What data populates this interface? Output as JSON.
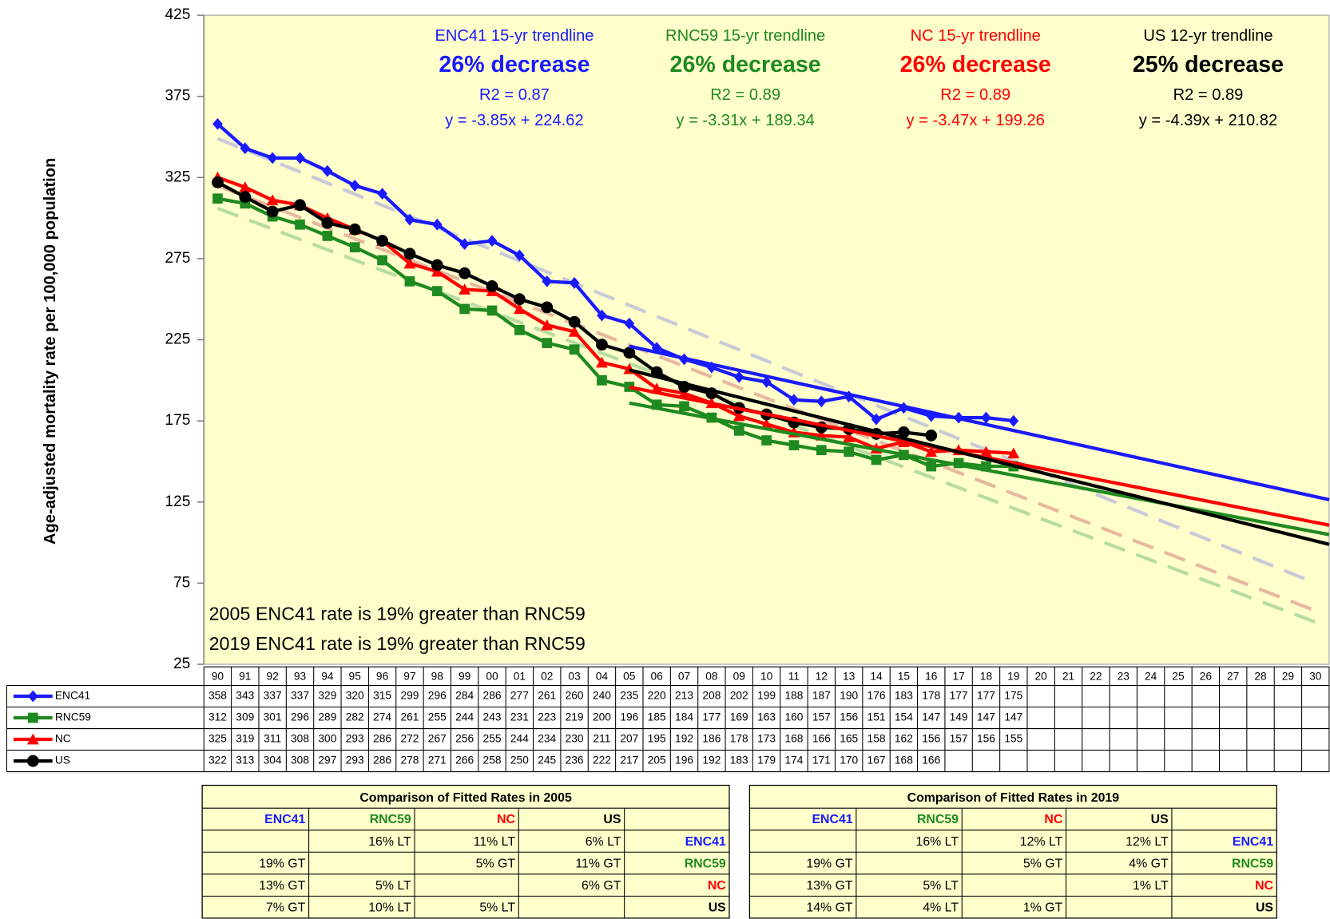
{
  "chart_data": {
    "type": "line",
    "y_label": "Age-adjusted mortality rate per 100,000 population",
    "categories": [
      "90",
      "91",
      "92",
      "93",
      "94",
      "95",
      "96",
      "97",
      "98",
      "99",
      "00",
      "01",
      "02",
      "03",
      "04",
      "05",
      "06",
      "07",
      "08",
      "09",
      "10",
      "11",
      "12",
      "13",
      "14",
      "15",
      "16",
      "17",
      "18",
      "19",
      "20",
      "21",
      "22",
      "23",
      "24",
      "25",
      "26",
      "27",
      "28",
      "29",
      "30"
    ],
    "ylim": [
      25,
      425
    ],
    "yticks": [
      25,
      75,
      125,
      175,
      225,
      275,
      325,
      375,
      425
    ],
    "background": "#ffffcc",
    "series": [
      {
        "name": "ENC41",
        "color": "#1a1aff",
        "marker": "diamond",
        "values": [
          358,
          343,
          337,
          337,
          329,
          320,
          315,
          299,
          296,
          284,
          286,
          277,
          261,
          260,
          240,
          235,
          220,
          213,
          208,
          202,
          199,
          188,
          187,
          190,
          176,
          183,
          178,
          177,
          177,
          175,
          null,
          null,
          null,
          null,
          null,
          null,
          null,
          null,
          null,
          null,
          null
        ]
      },
      {
        "name": "RNC59",
        "color": "#1f8a1f",
        "marker": "square",
        "values": [
          312,
          309,
          301,
          296,
          289,
          282,
          274,
          261,
          255,
          244,
          243,
          231,
          223,
          219,
          200,
          196,
          185,
          184,
          177,
          169,
          163,
          160,
          157,
          156,
          151,
          154,
          147,
          149,
          147,
          147,
          null,
          null,
          null,
          null,
          null,
          null,
          null,
          null,
          null,
          null,
          null
        ]
      },
      {
        "name": "NC",
        "color": "#ff0000",
        "marker": "triangle",
        "values": [
          325,
          319,
          311,
          308,
          300,
          293,
          286,
          272,
          267,
          256,
          255,
          244,
          234,
          230,
          211,
          207,
          195,
          192,
          186,
          178,
          173,
          168,
          166,
          165,
          158,
          162,
          156,
          157,
          156,
          155,
          null,
          null,
          null,
          null,
          null,
          null,
          null,
          null,
          null,
          null,
          null
        ]
      },
      {
        "name": "US",
        "color": "#000000",
        "marker": "circle",
        "values": [
          322,
          313,
          304,
          308,
          297,
          293,
          286,
          278,
          271,
          266,
          258,
          250,
          245,
          236,
          222,
          217,
          205,
          196,
          192,
          183,
          179,
          174,
          171,
          170,
          167,
          168,
          166,
          null,
          null,
          null,
          null,
          null,
          null,
          null,
          null,
          null,
          null,
          null,
          null,
          null,
          null
        ]
      }
    ],
    "long_trends": [
      {
        "color": "#c8cad8",
        "from": 0,
        "to": 40,
        "start": 349,
        "end": 75
      },
      {
        "color": "#e8b8a0",
        "from": 0,
        "to": 40,
        "start": 320,
        "end": 58
      },
      {
        "color": "#b8dca0",
        "from": 0,
        "to": 40,
        "start": 306,
        "end": 51
      }
    ],
    "trendlines": [
      {
        "color": "#1a1aff",
        "from": 15,
        "to": 40,
        "start": 221,
        "end": 124.5
      },
      {
        "color": "#1f8a1f",
        "from": 15,
        "to": 40,
        "start": 186,
        "end": 103.3
      },
      {
        "color": "#ff0000",
        "from": 15,
        "to": 40,
        "start": 195.8,
        "end": 109
      },
      {
        "color": "#000000",
        "from": 15,
        "to": 40,
        "start": 206.4,
        "end": 96.7
      }
    ],
    "annotations": [
      {
        "color": "#1a1aff",
        "lines": [
          "ENC41 15-yr trendline",
          "26% decrease",
          "R2 = 0.87",
          "y = -3.85x + 224.62"
        ]
      },
      {
        "color": "#1f8a1f",
        "lines": [
          "RNC59 15-yr trendline",
          "26% decrease",
          "R2 = 0.89",
          "y = -3.31x + 189.34"
        ]
      },
      {
        "color": "#ff0000",
        "lines": [
          "NC 15-yr trendline",
          "26% decrease",
          "R2 = 0.89",
          "y = -3.47x + 199.26"
        ]
      },
      {
        "color": "#000000",
        "lines": [
          "US 12-yr trendline",
          "25% decrease",
          "R2 = 0.89",
          "y = -4.39x + 210.82"
        ]
      }
    ],
    "notes": [
      "2005 ENC41 rate is 19% greater than RNC59",
      "2019 ENC41 rate is 19% greater than RNC59"
    ]
  },
  "comparison_tables": [
    {
      "title": "Comparison of Fitted Rates in 2005",
      "header": [
        "ENC41",
        "RNC59",
        "NC",
        "US",
        null
      ],
      "rows": [
        [
          null,
          "16% LT",
          "11% LT",
          "6% LT",
          "ENC41"
        ],
        [
          "19% GT",
          null,
          "5% GT",
          "11% GT",
          "RNC59"
        ],
        [
          "13% GT",
          "5% LT",
          null,
          "6% GT",
          "NC"
        ],
        [
          "7% GT",
          "10% LT",
          "5% LT",
          null,
          "US"
        ]
      ]
    },
    {
      "title": "Comparison of Fitted Rates in 2019",
      "header": [
        "ENC41",
        "RNC59",
        "NC",
        "US",
        null
      ],
      "rows": [
        [
          null,
          "16% LT",
          "12% LT",
          "12% LT",
          "ENC41"
        ],
        [
          "19% GT",
          null,
          "5% GT",
          "4% GT",
          "RNC59"
        ],
        [
          "13% GT",
          "5% LT",
          null,
          "1% LT",
          "NC"
        ],
        [
          "14% GT",
          "4% LT",
          "1% GT",
          null,
          "US"
        ]
      ]
    }
  ]
}
